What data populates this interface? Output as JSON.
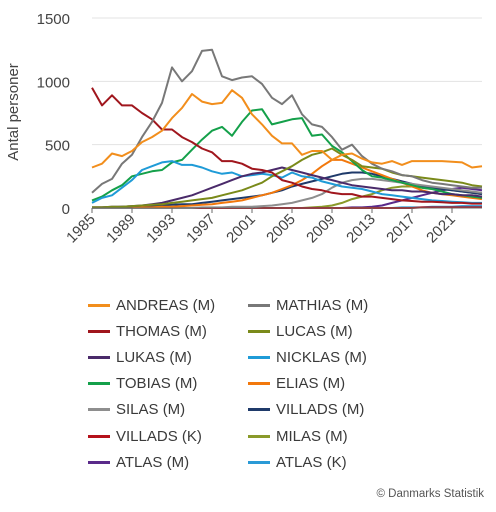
{
  "chart_data": {
    "type": "line",
    "ylabel": "Antal personer",
    "xlabel": "",
    "xlim": [
      1985,
      2024
    ],
    "ylim": [
      0,
      1500
    ],
    "yticks": [
      0,
      500,
      1000,
      1500
    ],
    "xticks": [
      1985,
      1989,
      1993,
      1997,
      2001,
      2005,
      2009,
      2013,
      2017,
      2021
    ],
    "grid": "horizontal",
    "legend_position": "bottom",
    "x": [
      1985,
      1986,
      1987,
      1988,
      1989,
      1990,
      1991,
      1992,
      1993,
      1994,
      1995,
      1996,
      1997,
      1998,
      1999,
      2000,
      2001,
      2002,
      2003,
      2004,
      2005,
      2006,
      2007,
      2008,
      2009,
      2010,
      2011,
      2012,
      2013,
      2014,
      2015,
      2016,
      2017,
      2018,
      2019,
      2020,
      2021,
      2022,
      2023,
      2024
    ],
    "series": [
      {
        "name": "ANDREAS (M)",
        "color": "#f28e1c",
        "values": [
          320,
          350,
          430,
          410,
          450,
          520,
          560,
          610,
          710,
          790,
          900,
          840,
          820,
          830,
          930,
          870,
          740,
          660,
          570,
          510,
          510,
          420,
          450,
          450,
          380,
          420,
          430,
          390,
          360,
          350,
          370,
          340,
          370,
          370,
          370,
          370,
          365,
          360,
          320,
          330
        ]
      },
      {
        "name": "MATHIAS (M)",
        "color": "#787878",
        "values": [
          120,
          190,
          230,
          350,
          420,
          560,
          680,
          830,
          1110,
          1000,
          1080,
          1240,
          1250,
          1040,
          1010,
          1030,
          1040,
          980,
          870,
          820,
          890,
          740,
          660,
          640,
          560,
          460,
          500,
          410,
          350,
          310,
          290,
          260,
          250,
          220,
          200,
          190,
          180,
          170,
          160,
          160
        ]
      },
      {
        "name": "THOMAS (M)",
        "color": "#a0161d",
        "values": [
          950,
          810,
          890,
          810,
          810,
          750,
          700,
          620,
          620,
          560,
          520,
          470,
          440,
          370,
          370,
          350,
          310,
          300,
          280,
          220,
          200,
          170,
          150,
          140,
          120,
          110,
          110,
          90,
          90,
          80,
          70,
          60,
          55,
          50,
          50,
          45,
          40,
          40,
          35,
          35
        ]
      },
      {
        "name": "LUCAS (M)",
        "color": "#7a8a1a",
        "values": [
          5,
          5,
          10,
          10,
          15,
          20,
          25,
          30,
          40,
          50,
          60,
          70,
          80,
          100,
          120,
          140,
          170,
          200,
          250,
          290,
          330,
          380,
          420,
          440,
          470,
          420,
          380,
          330,
          320,
          310,
          280,
          260,
          250,
          240,
          230,
          220,
          210,
          200,
          180,
          170
        ]
      },
      {
        "name": "LUKAS (M)",
        "color": "#4a2a6a",
        "values": [
          5,
          5,
          10,
          10,
          15,
          20,
          30,
          40,
          60,
          80,
          100,
          130,
          160,
          190,
          220,
          250,
          270,
          280,
          300,
          320,
          300,
          280,
          260,
          240,
          220,
          200,
          180,
          170,
          160,
          150,
          140,
          140,
          130,
          130,
          120,
          110,
          110,
          100,
          100,
          90
        ]
      },
      {
        "name": "NICKLAS (M)",
        "color": "#1f9bd7",
        "values": [
          40,
          80,
          100,
          160,
          220,
          300,
          330,
          360,
          370,
          340,
          340,
          320,
          290,
          270,
          280,
          250,
          260,
          270,
          260,
          240,
          280,
          250,
          240,
          210,
          190,
          170,
          160,
          150,
          130,
          110,
          100,
          90,
          80,
          70,
          60,
          55,
          50,
          45,
          40,
          40
        ]
      },
      {
        "name": "TOBIAS (M)",
        "color": "#14a04a",
        "values": [
          60,
          90,
          140,
          180,
          250,
          270,
          290,
          300,
          360,
          380,
          460,
          540,
          610,
          640,
          570,
          680,
          770,
          780,
          660,
          680,
          700,
          710,
          570,
          580,
          490,
          440,
          370,
          300,
          250,
          240,
          220,
          200,
          180,
          160,
          150,
          130,
          110,
          100,
          90,
          80
        ]
      },
      {
        "name": "ELIAS (M)",
        "color": "#f2780c",
        "values": [
          5,
          5,
          5,
          5,
          5,
          5,
          5,
          10,
          10,
          15,
          20,
          25,
          30,
          40,
          50,
          60,
          80,
          100,
          120,
          150,
          180,
          220,
          270,
          330,
          380,
          380,
          350,
          320,
          290,
          260,
          230,
          200,
          170,
          140,
          120,
          110,
          100,
          90,
          80,
          70
        ]
      },
      {
        "name": "SILAS (M)",
        "color": "#8e8e8e",
        "values": [
          0,
          0,
          0,
          0,
          0,
          0,
          0,
          0,
          0,
          0,
          0,
          5,
          5,
          5,
          10,
          10,
          10,
          15,
          20,
          30,
          40,
          60,
          80,
          110,
          160,
          200,
          220,
          230,
          230,
          220,
          210,
          200,
          190,
          180,
          170,
          160,
          150,
          140,
          130,
          120
        ]
      },
      {
        "name": "VILLADS (M)",
        "color": "#1f3a6a",
        "values": [
          5,
          5,
          5,
          10,
          10,
          10,
          15,
          20,
          25,
          30,
          30,
          40,
          50,
          60,
          70,
          80,
          90,
          100,
          120,
          140,
          170,
          190,
          210,
          230,
          250,
          270,
          280,
          280,
          270,
          250,
          230,
          210,
          190,
          170,
          160,
          150,
          140,
          130,
          120,
          110
        ]
      },
      {
        "name": "VILLADS (K)",
        "color": "#b5121b",
        "values": [
          0,
          0,
          0,
          0,
          0,
          0,
          0,
          0,
          0,
          0,
          0,
          0,
          0,
          0,
          0,
          0,
          0,
          0,
          0,
          0,
          0,
          0,
          0,
          0,
          0,
          0,
          0,
          0,
          0,
          0,
          0,
          0,
          0,
          5,
          5,
          5,
          5,
          5,
          5,
          5
        ]
      },
      {
        "name": "MILAS (M)",
        "color": "#8a9a2a",
        "values": [
          0,
          0,
          0,
          0,
          0,
          0,
          0,
          0,
          0,
          0,
          0,
          0,
          0,
          0,
          0,
          0,
          0,
          0,
          0,
          0,
          0,
          0,
          5,
          10,
          20,
          40,
          70,
          90,
          110,
          140,
          160,
          170,
          170,
          160,
          150,
          150,
          140,
          130,
          120,
          110
        ]
      },
      {
        "name": "ATLAS (M)",
        "color": "#5a2a8a",
        "values": [
          0,
          0,
          0,
          0,
          0,
          0,
          0,
          0,
          0,
          0,
          0,
          0,
          0,
          0,
          0,
          0,
          0,
          0,
          0,
          0,
          0,
          0,
          0,
          0,
          0,
          0,
          5,
          5,
          10,
          20,
          40,
          60,
          80,
          100,
          120,
          140,
          150,
          160,
          150,
          140
        ]
      },
      {
        "name": "ATLAS (K)",
        "color": "#2a9ad6",
        "values": [
          0,
          0,
          0,
          0,
          0,
          0,
          0,
          0,
          0,
          0,
          0,
          0,
          0,
          0,
          0,
          0,
          0,
          0,
          0,
          0,
          0,
          0,
          0,
          0,
          0,
          0,
          0,
          0,
          0,
          0,
          0,
          5,
          5,
          5,
          10,
          10,
          10,
          15,
          15,
          15
        ]
      }
    ]
  },
  "credit": "© Danmarks Statistik"
}
